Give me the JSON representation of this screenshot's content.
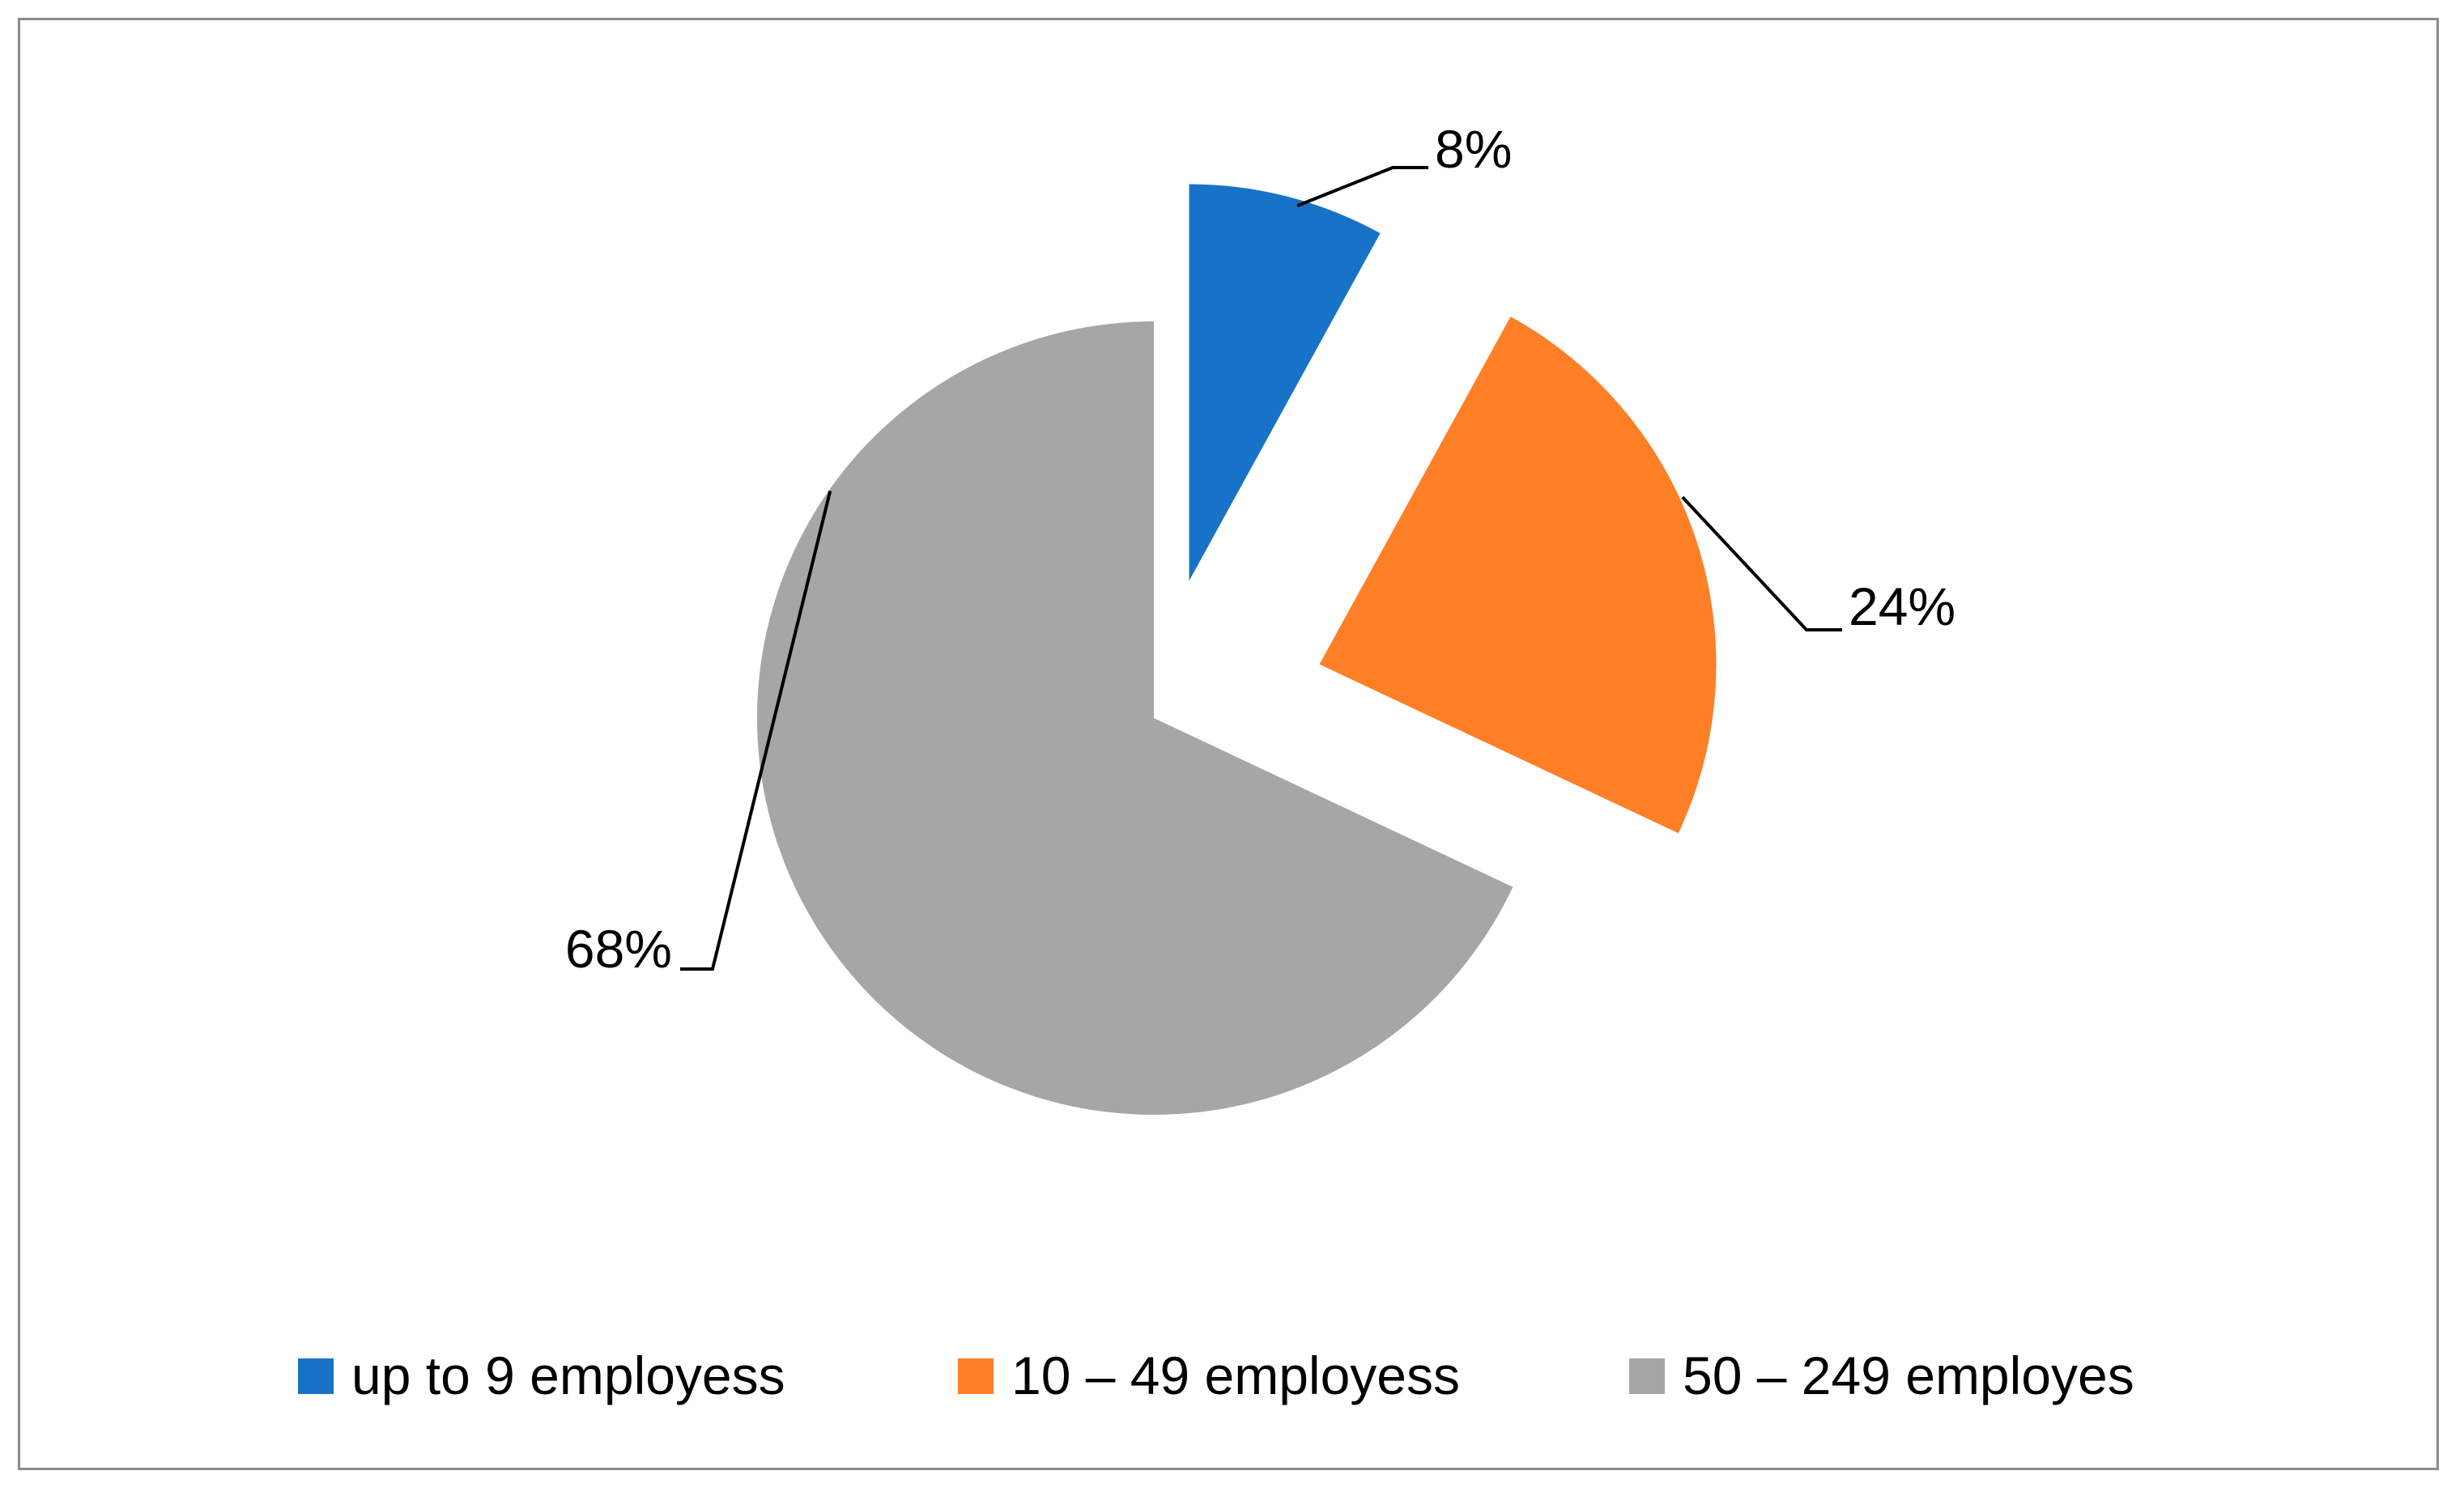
{
  "chart_data": {
    "type": "pie",
    "exploded": true,
    "categories": [
      "up to 9 employess",
      "10 – 49 employess",
      "50 – 249 employes"
    ],
    "values": [
      8,
      24,
      68
    ],
    "data_labels": [
      "8%",
      "24%",
      "68%"
    ],
    "colors": [
      "#1872c7",
      "#fe7f26",
      "#a6a6a6"
    ],
    "legend_position": "bottom",
    "title": ""
  }
}
